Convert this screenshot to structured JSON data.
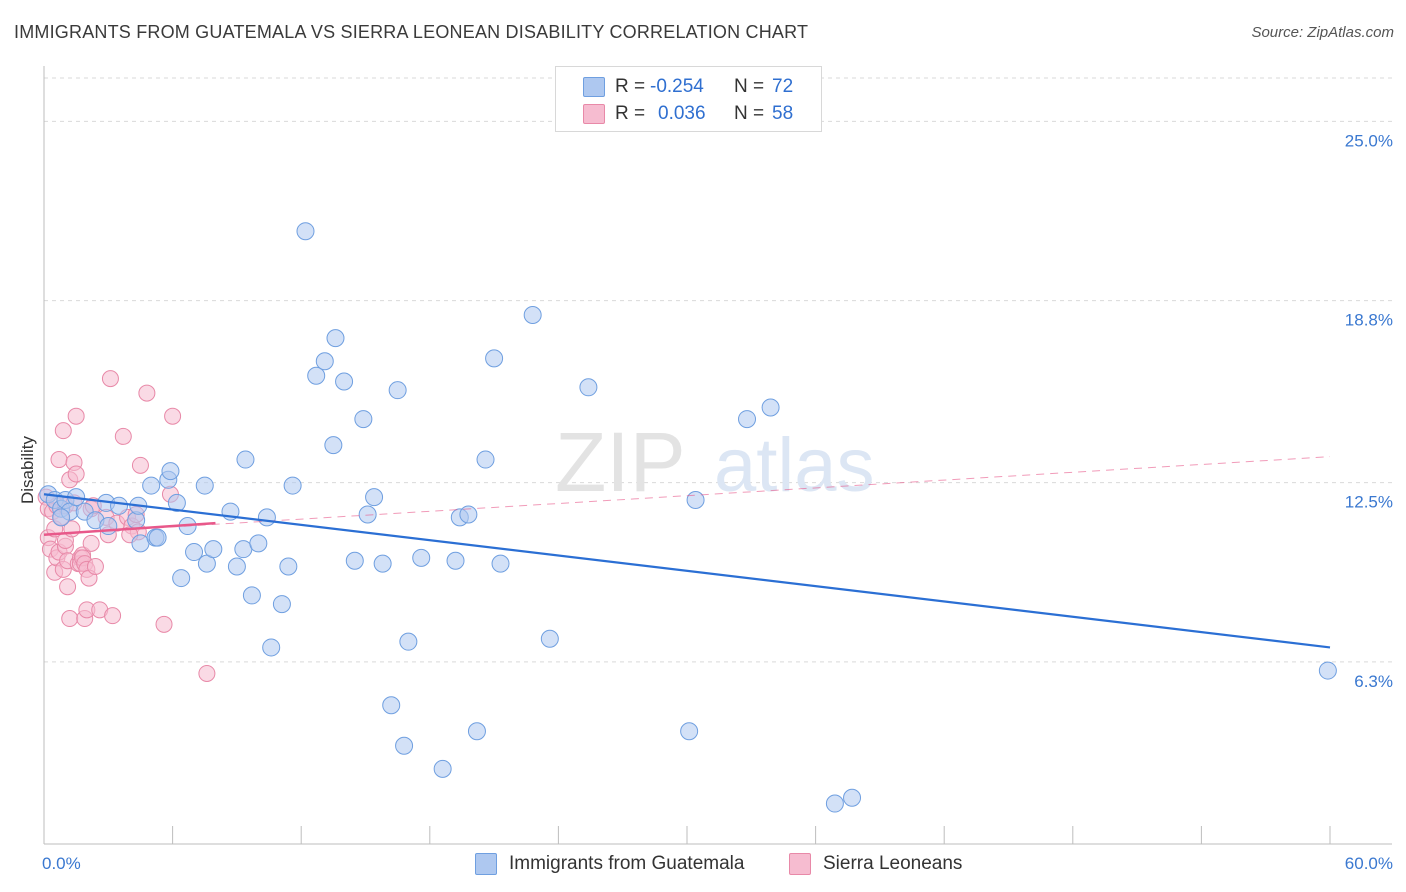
{
  "title": "IMMIGRANTS FROM GUATEMALA VS SIERRA LEONEAN DISABILITY CORRELATION CHART",
  "source": "Source: ZipAtlas.com",
  "watermark": {
    "zip": "ZIP",
    "atlas": "atlas"
  },
  "legend": {
    "rows": [
      {
        "r_label": "R =",
        "r_value": "-0.254",
        "n_label": "N =",
        "n_value": "72"
      },
      {
        "r_label": "R =",
        "r_value": "0.036",
        "n_label": "N =",
        "n_value": "58"
      }
    ]
  },
  "colors": {
    "blue_fill": "#aec8f0",
    "blue_stroke": "#6f9fe0",
    "blue_line": "#2b6fd4",
    "pink_fill": "#f6bcd0",
    "pink_stroke": "#e889a8",
    "pink_line": "#e8588a",
    "axis_text": "#3a78d0",
    "grid": "#d9d9d9"
  },
  "chart_data": {
    "type": "scatter",
    "title": "IMMIGRANTS FROM GUATEMALA VS SIERRA LEONEAN DISABILITY CORRELATION CHART",
    "xlabel": "",
    "ylabel": "Disability",
    "xlim": [
      0,
      60
    ],
    "ylim": [
      0,
      26.5
    ],
    "x_tick_labels": [
      "0.0%",
      "60.0%"
    ],
    "y_ticks": [
      6.3,
      12.5,
      18.8,
      25.0
    ],
    "y_tick_labels": [
      "6.3%",
      "12.5%",
      "18.8%",
      "25.0%"
    ],
    "grid": true,
    "series": [
      {
        "name": "Immigrants from Guatemala",
        "color": "#aec8f0",
        "r": -0.254,
        "n": 72,
        "trend": {
          "x": [
            0,
            60
          ],
          "y": [
            12.1,
            6.8
          ]
        },
        "points": [
          [
            0.2,
            12.1
          ],
          [
            0.5,
            11.9
          ],
          [
            0.8,
            11.6
          ],
          [
            1.0,
            11.9
          ],
          [
            1.2,
            11.5
          ],
          [
            1.5,
            12.0
          ],
          [
            1.9,
            11.5
          ],
          [
            2.4,
            11.2
          ],
          [
            2.9,
            11.8
          ],
          [
            3.5,
            11.7
          ],
          [
            4.3,
            11.2
          ],
          [
            4.5,
            10.4
          ],
          [
            4.4,
            11.7
          ],
          [
            5.0,
            12.4
          ],
          [
            5.2,
            10.6
          ],
          [
            5.3,
            10.6
          ],
          [
            5.8,
            12.6
          ],
          [
            5.9,
            12.9
          ],
          [
            6.2,
            11.8
          ],
          [
            6.4,
            9.2
          ],
          [
            6.7,
            11.0
          ],
          [
            7.0,
            10.1
          ],
          [
            7.5,
            12.4
          ],
          [
            7.6,
            9.7
          ],
          [
            7.9,
            10.2
          ],
          [
            8.7,
            11.5
          ],
          [
            9.0,
            9.6
          ],
          [
            9.3,
            10.2
          ],
          [
            9.4,
            13.3
          ],
          [
            9.7,
            8.6
          ],
          [
            10.0,
            10.4
          ],
          [
            10.4,
            11.3
          ],
          [
            10.6,
            6.8
          ],
          [
            11.1,
            8.3
          ],
          [
            11.4,
            9.6
          ],
          [
            11.6,
            12.4
          ],
          [
            12.2,
            21.2
          ],
          [
            12.7,
            16.2
          ],
          [
            13.1,
            16.7
          ],
          [
            13.5,
            13.8
          ],
          [
            13.6,
            17.5
          ],
          [
            14.0,
            16.0
          ],
          [
            14.5,
            9.8
          ],
          [
            14.9,
            14.7
          ],
          [
            15.1,
            11.4
          ],
          [
            15.4,
            12.0
          ],
          [
            15.8,
            9.7
          ],
          [
            16.2,
            4.8
          ],
          [
            16.5,
            15.7
          ],
          [
            16.8,
            3.4
          ],
          [
            17.0,
            7.0
          ],
          [
            17.6,
            9.9
          ],
          [
            18.6,
            2.6
          ],
          [
            19.2,
            9.8
          ],
          [
            19.4,
            11.3
          ],
          [
            19.8,
            11.4
          ],
          [
            20.2,
            3.9
          ],
          [
            20.6,
            13.3
          ],
          [
            21.0,
            16.8
          ],
          [
            21.3,
            9.7
          ],
          [
            22.8,
            18.3
          ],
          [
            23.6,
            7.1
          ],
          [
            25.4,
            15.8
          ],
          [
            30.1,
            3.9
          ],
          [
            30.4,
            11.9
          ],
          [
            32.8,
            14.7
          ],
          [
            33.9,
            15.1
          ],
          [
            36.9,
            1.4
          ],
          [
            37.7,
            1.6
          ],
          [
            59.9,
            6.0
          ],
          [
            0.8,
            11.3
          ],
          [
            3.0,
            11.0
          ]
        ]
      },
      {
        "name": "Sierra Leoneans",
        "color": "#f6bcd0",
        "r": 0.036,
        "n": 58,
        "trend": {
          "x": [
            0,
            8
          ],
          "y": [
            10.7,
            11.1
          ],
          "extended": {
            "x": [
              0,
              60
            ],
            "y": [
              10.7,
              13.4
            ]
          }
        },
        "points": [
          [
            0.1,
            12.0
          ],
          [
            0.2,
            11.6
          ],
          [
            0.2,
            10.6
          ],
          [
            0.3,
            10.2
          ],
          [
            0.4,
            11.5
          ],
          [
            0.5,
            9.4
          ],
          [
            0.5,
            10.9
          ],
          [
            0.6,
            9.9
          ],
          [
            0.6,
            11.7
          ],
          [
            0.7,
            13.3
          ],
          [
            0.7,
            10.1
          ],
          [
            0.8,
            11.3
          ],
          [
            0.9,
            14.3
          ],
          [
            0.9,
            9.5
          ],
          [
            1.0,
            10.3
          ],
          [
            1.0,
            10.5
          ],
          [
            1.0,
            11.7
          ],
          [
            1.1,
            9.8
          ],
          [
            1.1,
            8.9
          ],
          [
            1.2,
            12.6
          ],
          [
            1.2,
            7.8
          ],
          [
            1.3,
            10.9
          ],
          [
            1.4,
            13.2
          ],
          [
            1.4,
            11.8
          ],
          [
            1.5,
            12.8
          ],
          [
            1.5,
            14.8
          ],
          [
            1.6,
            9.7
          ],
          [
            1.7,
            9.9
          ],
          [
            1.7,
            9.7
          ],
          [
            1.8,
            10.0
          ],
          [
            1.8,
            9.9
          ],
          [
            1.9,
            9.7
          ],
          [
            1.9,
            7.8
          ],
          [
            2.0,
            9.5
          ],
          [
            2.0,
            8.1
          ],
          [
            2.1,
            9.2
          ],
          [
            2.2,
            11.6
          ],
          [
            2.2,
            10.4
          ],
          [
            2.3,
            11.7
          ],
          [
            2.4,
            9.6
          ],
          [
            2.6,
            8.1
          ],
          [
            2.9,
            11.3
          ],
          [
            3.0,
            10.7
          ],
          [
            3.1,
            16.1
          ],
          [
            3.2,
            7.9
          ],
          [
            3.4,
            11.1
          ],
          [
            3.7,
            14.1
          ],
          [
            3.9,
            11.3
          ],
          [
            4.1,
            11.0
          ],
          [
            4.3,
            11.4
          ],
          [
            4.4,
            10.8
          ],
          [
            4.5,
            13.1
          ],
          [
            4.8,
            15.6
          ],
          [
            5.6,
            7.6
          ],
          [
            5.9,
            12.1
          ],
          [
            6.0,
            14.8
          ],
          [
            7.6,
            5.9
          ],
          [
            4.0,
            10.7
          ]
        ]
      }
    ]
  },
  "bottom_legend": [
    {
      "label": "Immigrants from Guatemala"
    },
    {
      "label": "Sierra Leoneans"
    }
  ]
}
